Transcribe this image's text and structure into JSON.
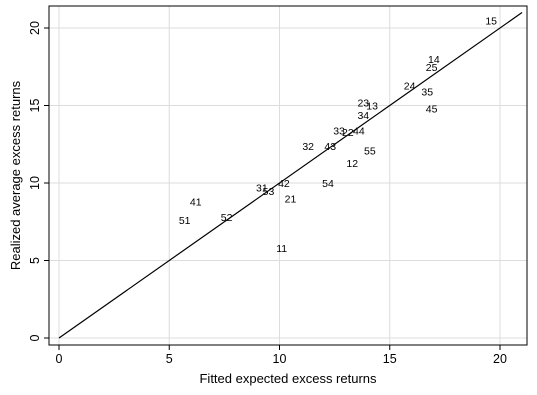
{
  "chart_data": {
    "type": "scatter",
    "xlabel": "Fitted expected excess returns",
    "ylabel": "Realized average excess returns",
    "xlim": [
      0,
      21
    ],
    "ylim": [
      0,
      21
    ],
    "x_ticks": [
      0,
      5,
      10,
      15,
      20
    ],
    "y_ticks": [
      0,
      5,
      10,
      15,
      20
    ],
    "x_tick_labels": [
      "0",
      "5",
      "10",
      "15",
      "20"
    ],
    "y_tick_labels": [
      "0",
      "5",
      "10",
      "15",
      "20"
    ],
    "grid": true,
    "reference_line": {
      "from": [
        0,
        0
      ],
      "to": [
        21,
        21
      ]
    },
    "points": [
      {
        "label": "15",
        "x": 19.6,
        "y": 20.5
      },
      {
        "label": "14",
        "x": 17.0,
        "y": 18.0
      },
      {
        "label": "25",
        "x": 16.9,
        "y": 17.5
      },
      {
        "label": "24",
        "x": 15.9,
        "y": 16.3
      },
      {
        "label": "35",
        "x": 16.7,
        "y": 15.9
      },
      {
        "label": "23",
        "x": 13.8,
        "y": 15.2
      },
      {
        "label": "13",
        "x": 14.2,
        "y": 15.0
      },
      {
        "label": "45",
        "x": 16.9,
        "y": 14.8
      },
      {
        "label": "34",
        "x": 13.8,
        "y": 14.4
      },
      {
        "label": "33",
        "x": 12.7,
        "y": 13.4
      },
      {
        "label": "22",
        "x": 13.1,
        "y": 13.3
      },
      {
        "label": "44",
        "x": 13.6,
        "y": 13.4
      },
      {
        "label": "32",
        "x": 11.3,
        "y": 12.4
      },
      {
        "label": "43",
        "x": 12.3,
        "y": 12.4
      },
      {
        "label": "55",
        "x": 14.1,
        "y": 12.1
      },
      {
        "label": "12",
        "x": 13.3,
        "y": 11.3
      },
      {
        "label": "54",
        "x": 12.2,
        "y": 10.0
      },
      {
        "label": "42",
        "x": 10.2,
        "y": 10.0
      },
      {
        "label": "31",
        "x": 9.2,
        "y": 9.7
      },
      {
        "label": "53",
        "x": 9.5,
        "y": 9.5
      },
      {
        "label": "21",
        "x": 10.5,
        "y": 9.0
      },
      {
        "label": "41",
        "x": 6.2,
        "y": 8.8
      },
      {
        "label": "52",
        "x": 7.6,
        "y": 7.8
      },
      {
        "label": "51",
        "x": 5.7,
        "y": 7.6
      },
      {
        "label": "11",
        "x": 10.1,
        "y": 5.8
      }
    ]
  }
}
